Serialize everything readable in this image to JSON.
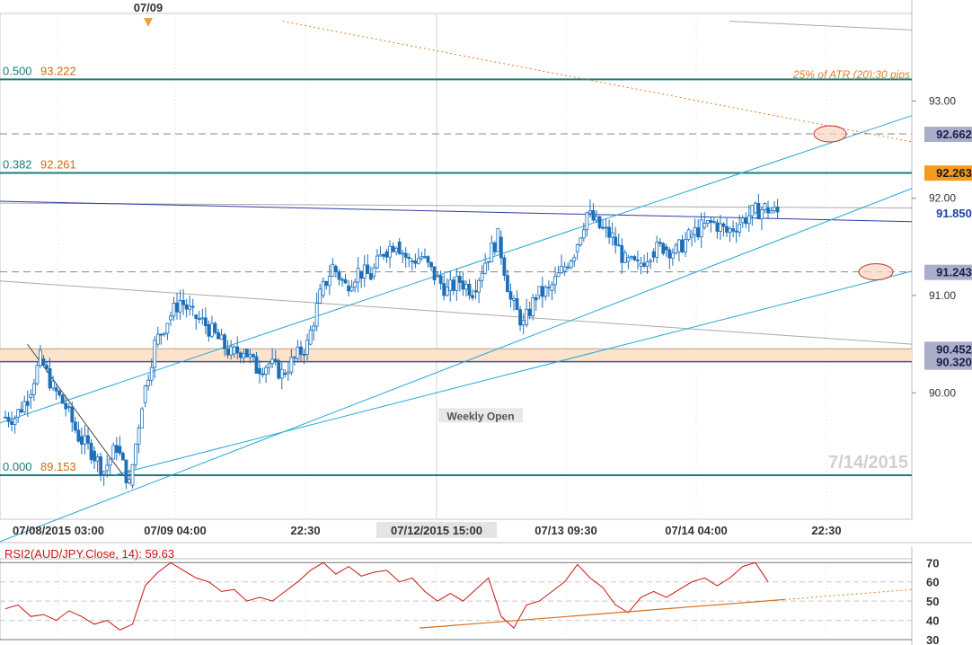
{
  "chart_data": [
    {
      "type": "candlestick",
      "symbol": "AUD/JPY",
      "ylim": [
        88.7,
        93.9
      ],
      "y_ticks": [
        "93.00",
        "92.00",
        "91.00",
        "90.00"
      ],
      "y_tick_values": [
        93.0,
        92.0,
        91.0,
        90.0
      ],
      "x_tick_labels": [
        "07/08/2015 03:00",
        "07/09 04:00",
        "22:30",
        "07/12/2015 15:00",
        "07/13 09:30",
        "07/14 04:00",
        "22:30"
      ],
      "top_marker_label": "07/09",
      "watermark": "7/14/2015",
      "fib_levels": [
        {
          "ratio": "0.500",
          "price": "93.222",
          "value": 93.222
        },
        {
          "ratio": "0.382",
          "price": "92.261",
          "value": 92.261
        },
        {
          "ratio": "0.000",
          "price": "89.153",
          "value": 89.153
        }
      ],
      "price_tags": [
        {
          "label": "92.662",
          "value": 92.662,
          "style": "gray"
        },
        {
          "label": "92.263",
          "value": 92.263,
          "style": "orange"
        },
        {
          "label": "91.850",
          "value": 91.85,
          "style": "blue"
        },
        {
          "label": "91.243",
          "value": 91.243,
          "style": "gray"
        },
        {
          "label": "90.452",
          "value": 90.452,
          "style": "gray"
        },
        {
          "label": "90.320",
          "value": 90.32,
          "style": "gray"
        }
      ],
      "zone": {
        "from": 90.32,
        "to": 90.452
      },
      "annotations": {
        "atr_note": "25% of ATR (20):30 pips",
        "weekly_open": "Weekly Open"
      },
      "channel": {
        "upper": [
          [
            0.0,
            89.69
          ],
          [
            1.0,
            92.85
          ]
        ],
        "middle": [
          [
            0.0,
            88.47
          ],
          [
            1.0,
            92.1
          ]
        ],
        "lower": [
          [
            0.125,
            89.153
          ],
          [
            1.0,
            91.25
          ]
        ]
      },
      "closes": [
        89.75,
        89.95,
        90.35,
        90.05,
        89.85,
        89.55,
        89.4,
        89.2,
        89.45,
        89.05,
        89.9,
        90.5,
        90.75,
        90.95,
        90.8,
        90.7,
        90.55,
        90.4,
        90.45,
        90.25,
        90.3,
        90.2,
        90.35,
        90.5,
        91.0,
        91.3,
        91.1,
        91.25,
        91.2,
        91.45,
        91.55,
        91.35,
        91.4,
        91.2,
        91.05,
        91.15,
        91.05,
        91.35,
        91.6,
        90.95,
        90.7,
        91.0,
        91.05,
        91.25,
        91.45,
        91.85,
        91.7,
        91.6,
        91.35,
        91.3,
        91.45,
        91.5,
        91.45,
        91.6,
        91.7,
        91.75,
        91.65,
        91.75,
        91.85,
        91.9,
        91.85
      ]
    },
    {
      "type": "line",
      "title": "RSI2(AUD/JPY.Close, 14): 59.63",
      "ylim": [
        30,
        72
      ],
      "y_ticks": [
        "70",
        "60",
        "50",
        "40",
        "30"
      ],
      "y_tick_values": [
        70,
        60,
        50,
        40,
        30
      ],
      "values": [
        46,
        48,
        42,
        43,
        40,
        45,
        42,
        38,
        40,
        35,
        38,
        58,
        65,
        70,
        66,
        62,
        60,
        55,
        56,
        50,
        52,
        50,
        55,
        60,
        66,
        70,
        64,
        68,
        63,
        65,
        66,
        60,
        62,
        55,
        50,
        54,
        50,
        56,
        62,
        42,
        36,
        48,
        50,
        55,
        60,
        69,
        62,
        57,
        48,
        44,
        52,
        55,
        52,
        56,
        60,
        62,
        58,
        62,
        68,
        70,
        60
      ],
      "trendline": [
        [
          0.46,
          36
        ],
        [
          1.0,
          56
        ]
      ]
    }
  ]
}
